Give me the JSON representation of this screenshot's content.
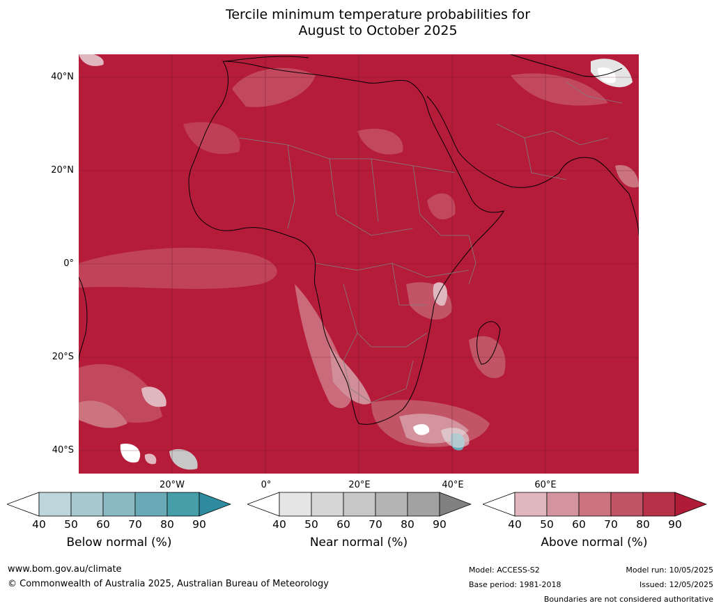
{
  "title_line1": "Tercile minimum temperature probabilities for",
  "title_line2": "August to October 2025",
  "map": {
    "region": "Africa",
    "base_color": "#b51c3a",
    "lat_labels": [
      "40°N",
      "20°N",
      "0°",
      "20°S",
      "40°S"
    ],
    "lon_labels": [
      "20°W",
      "0°",
      "20°E",
      "40°E",
      "60°E"
    ]
  },
  "colorbars": [
    {
      "label": "Below normal (%)",
      "ticks": [
        "40",
        "50",
        "60",
        "70",
        "80",
        "90"
      ],
      "colors": [
        "#ffffff",
        "#bfd5dc",
        "#a8c8cf",
        "#8ab8c3",
        "#6aa9b6",
        "#479ea9",
        "#2e8ba0"
      ]
    },
    {
      "label": "Near normal (%)",
      "ticks": [
        "40",
        "50",
        "60",
        "70",
        "80",
        "90"
      ],
      "colors": [
        "#ffffff",
        "#e5e5e5",
        "#d6d6d6",
        "#c7c7c7",
        "#b4b4b4",
        "#a2a2a2",
        "#808080"
      ]
    },
    {
      "label": "Above normal (%)",
      "ticks": [
        "40",
        "50",
        "60",
        "70",
        "80",
        "90"
      ],
      "colors": [
        "#ffffff",
        "#e1b7bf",
        "#d3949f",
        "#cb737f",
        "#c15566",
        "#b73149",
        "#b01b38"
      ]
    }
  ],
  "footer": {
    "website": "www.bom.gov.au/climate",
    "copyright": "© Commonwealth of Australia 2025, Australian Bureau of Meteorology",
    "model": "Model: ACCESS-S2",
    "base_period": "Base period: 1981-2018",
    "model_run": "Model run: 10/05/2025",
    "issued": "Issued: 12/05/2025",
    "disclaimer": "Boundaries are not considered authoritative"
  }
}
